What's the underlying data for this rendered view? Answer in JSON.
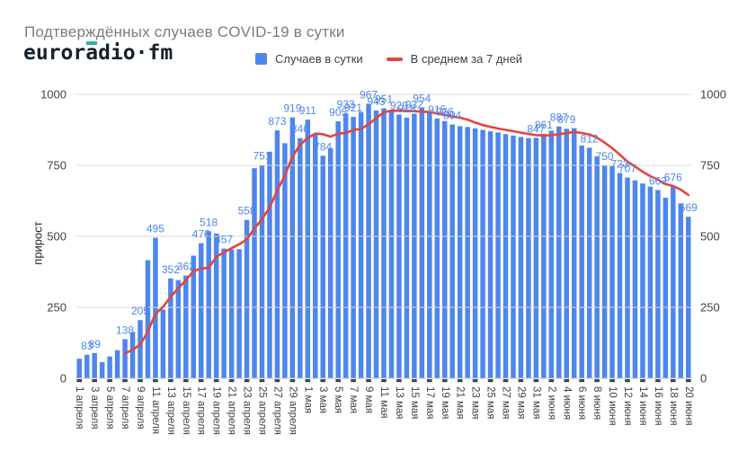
{
  "header": {
    "title": "Подтверждённых случаев COVID-19 в сутки",
    "logo": {
      "part1": "euror",
      "accent_letter": "a",
      "part2": "dio",
      "dot": "·",
      "part3": "fm",
      "text_color": "#16222b",
      "accent_color": "#2cb5a2"
    }
  },
  "legend": [
    {
      "label": "Случаев в сутки",
      "swatch": "square",
      "color": "#4e86ec"
    },
    {
      "label": "В среднем за 7 дней",
      "swatch": "line",
      "color": "#e5443b"
    }
  ],
  "chart_data": {
    "type": "bar",
    "title": "Подтверждённых случаев COVID-19 в сутки",
    "xlabel": "",
    "ylabel": "прирост",
    "ylim": [
      0,
      1000
    ],
    "y_ticks": [
      0,
      250,
      500,
      750,
      1000
    ],
    "y_axis_sides": [
      "left",
      "right"
    ],
    "grid": true,
    "legend_position": "top",
    "bar_color": "#4e86ec",
    "line_color": "#e5443b",
    "x_tick_labels": [
      "1 апреля",
      "3 апреля",
      "5 апреля",
      "7 апреля",
      "9 апреля",
      "11 апреля",
      "13 апреля",
      "15 апреля",
      "17 апреля",
      "19 апреля",
      "21 апреля",
      "23 апреля",
      "25 апреля",
      "27 апреля",
      "29 апреля",
      "1 мая",
      "3 мая",
      "5 мая",
      "7 мая",
      "9 мая",
      "11 мая",
      "13 мая",
      "15 мая",
      "17 мая",
      "19 мая",
      "21 мая",
      "23 мая",
      "25 мая",
      "27 мая",
      "29 мая",
      "31 мая",
      "2 июня",
      "4 июня",
      "6 июня",
      "8 июня",
      "10 июня",
      "12 июня",
      "14 июня",
      "16 июня",
      "18 июня",
      "20 июня"
    ],
    "x_tick_every_n_bars": 2,
    "series": [
      {
        "name": "Случаев в сутки",
        "type": "bar",
        "color": "#4e86ec",
        "values": [
          69,
          83,
          89,
          57,
          77,
          99,
          138,
          163,
          205,
          416,
          495,
          242,
          352,
          346,
          362,
          432,
          476,
          518,
          510,
          457,
          454,
          455,
          558,
          740,
          751,
          798,
          873,
          828,
          919,
          846,
          911,
          858,
          784,
          810,
          905,
          933,
          921,
          938,
          967,
          943,
          951,
          946,
          929,
          918,
          932,
          954,
          936,
          915,
          906,
          894,
          888,
          885,
          880,
          875,
          870,
          866,
          860,
          855,
          850,
          846,
          847,
          861,
          872,
          887,
          879,
          881,
          820,
          812,
          782,
          750,
          747,
          723,
          707,
          697,
          686,
          675,
          663,
          636,
          676,
          616,
          569
        ]
      },
      {
        "name": "В среднем за 7 дней",
        "type": "line",
        "color": "#e5443b",
        "derived": "7-day trailing moving average of the bar series, drawn from the 7th bar onward"
      }
    ],
    "bar_value_labels": {
      "1": "83",
      "2": "89",
      "6": "138",
      "8": "205",
      "10": "495",
      "12": "352",
      "14": "362",
      "16": "476",
      "17": "518",
      "19": "457",
      "22": "558",
      "24": "751",
      "26": "873",
      "28": "919",
      "29": "846",
      "30": "911",
      "32": "784",
      "34": "905",
      "35": "933",
      "36": "921",
      "38": "967",
      "39": "943",
      "40": "951",
      "42": "929",
      "43": "918",
      "44": "932",
      "45": "954",
      "47": "915",
      "48": "906",
      "49": "894",
      "60": "847",
      "61": "861",
      "63": "887",
      "64": "879",
      "67": "812",
      "69": "750",
      "71": "723",
      "72": "707",
      "76": "663",
      "78": "676",
      "80": "569"
    }
  }
}
